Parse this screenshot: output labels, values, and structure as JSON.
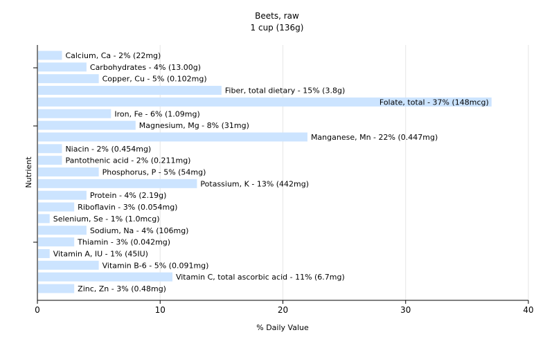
{
  "chart_data": {
    "type": "bar",
    "orientation": "horizontal",
    "title": "Beets, raw",
    "subtitle": "1 cup (136g)",
    "xlabel": "% Daily Value",
    "ylabel": "Nutrient",
    "xlim": [
      0,
      40
    ],
    "xticks": [
      "0",
      "10",
      "20",
      "30",
      "40"
    ],
    "grid": true,
    "bar_color": "#cce4ff",
    "categories": [
      "Calcium, Ca",
      "Carbohydrates",
      "Copper, Cu",
      "Fiber, total dietary",
      "Folate, total",
      "Iron, Fe",
      "Magnesium, Mg",
      "Manganese, Mn",
      "Niacin",
      "Pantothenic acid",
      "Phosphorus, P",
      "Potassium, K",
      "Protein",
      "Riboflavin",
      "Selenium, Se",
      "Sodium, Na",
      "Thiamin",
      "Vitamin A, IU",
      "Vitamin B-6",
      "Vitamin C, total ascorbic acid",
      "Zinc, Zn"
    ],
    "values": [
      2,
      4,
      5,
      15,
      37,
      6,
      8,
      22,
      2,
      2,
      5,
      13,
      4,
      3,
      1,
      4,
      3,
      1,
      5,
      11,
      3
    ],
    "labels": [
      "Calcium, Ca - 2% (22mg)",
      "Carbohydrates - 4% (13.00g)",
      "Copper, Cu - 5% (0.102mg)",
      "Fiber, total dietary - 15% (3.8g)",
      "Folate, total - 37% (148mcg)",
      "Iron, Fe - 6% (1.09mg)",
      "Magnesium, Mg - 8% (31mg)",
      "Manganese, Mn - 22% (0.447mg)",
      "Niacin - 2% (0.454mg)",
      "Pantothenic acid - 2% (0.211mg)",
      "Phosphorus, P - 5% (54mg)",
      "Potassium, K - 13% (442mg)",
      "Protein - 4% (2.19g)",
      "Riboflavin - 3% (0.054mg)",
      "Selenium, Se - 1% (1.0mcg)",
      "Sodium, Na - 4% (106mg)",
      "Thiamin - 3% (0.042mg)",
      "Vitamin A, IU - 1% (45IU)",
      "Vitamin B-6 - 5% (0.091mg)",
      "Vitamin C, total ascorbic acid - 11% (6.7mg)",
      "Zinc, Zn - 3% (0.48mg)"
    ]
  }
}
